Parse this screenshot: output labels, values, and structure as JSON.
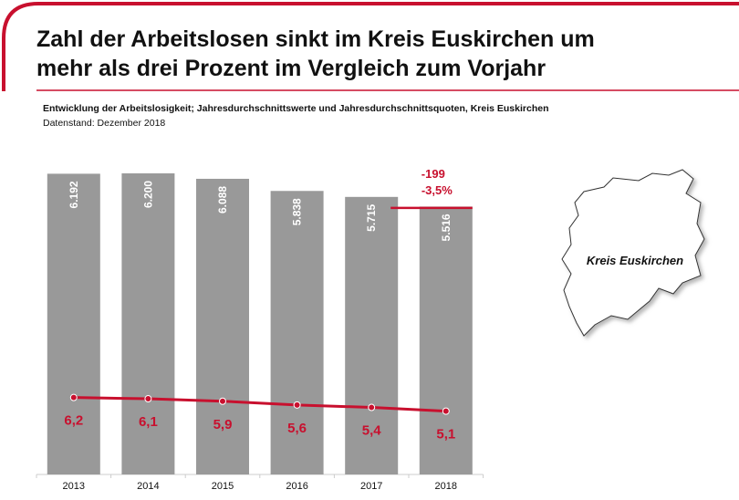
{
  "chart_data": {
    "type": "bar_line",
    "title_line1": "Zahl der Arbeitslosen sinkt im Kreis Euskirchen um",
    "title_line2": "mehr als drei Prozent im Vergleich zum Vorjahr",
    "subtitle": "Entwicklung der Arbeitslosigkeit; Jahresdurchschnittswerte und Jahresdurchschnittsquoten, Kreis Euskirchen",
    "source": "Datenstand: Dezember 2018",
    "categories": [
      "2013",
      "2014",
      "2015",
      "2016",
      "2017",
      "2018"
    ],
    "series": [
      {
        "name": "Arbeitslose",
        "color": "#999999",
        "values": [
          6192,
          6200,
          6088,
          5838,
          5715,
          5516
        ],
        "value_labels": [
          "6.192",
          "6.200",
          "6.088",
          "5.838",
          "5.715",
          "5.516"
        ]
      },
      {
        "name": "Arbeitslosenquote",
        "color": "#c8102e",
        "values": [
          6.2,
          6.1,
          5.9,
          5.6,
          5.4,
          5.1
        ],
        "value_labels": [
          "6,2",
          "6,1",
          "5,9",
          "5,6",
          "5,4",
          "5,1"
        ]
      }
    ],
    "annotation": {
      "change": "-199",
      "change_percent": "-3,5%"
    },
    "map_label": "Kreis Euskirchen"
  }
}
